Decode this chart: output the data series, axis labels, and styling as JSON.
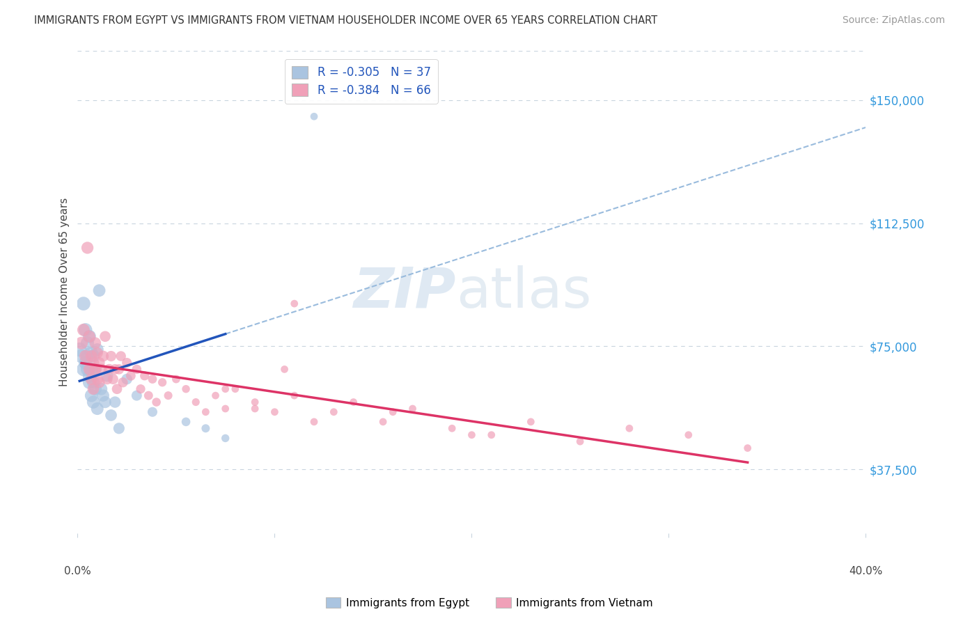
{
  "title": "IMMIGRANTS FROM EGYPT VS IMMIGRANTS FROM VIETNAM HOUSEHOLDER INCOME OVER 65 YEARS CORRELATION CHART",
  "source": "Source: ZipAtlas.com",
  "ylabel": "Householder Income Over 65 years",
  "yticks": [
    37500,
    75000,
    112500,
    150000
  ],
  "ytick_labels": [
    "$37,500",
    "$75,000",
    "$112,500",
    "$150,000"
  ],
  "xlim": [
    0.0,
    0.4
  ],
  "ylim": [
    18000,
    165000
  ],
  "egypt_R": -0.305,
  "egypt_N": 37,
  "vietnam_R": -0.384,
  "vietnam_N": 66,
  "egypt_color": "#aac4e0",
  "vietnam_color": "#f0a0b8",
  "egypt_line_color": "#2255bb",
  "vietnam_line_color": "#dd3366",
  "dashed_line_color": "#99bbdd",
  "background_color": "#ffffff",
  "grid_color": "#c8d4de",
  "egypt_x": [
    0.001,
    0.002,
    0.003,
    0.003,
    0.004,
    0.004,
    0.005,
    0.005,
    0.005,
    0.006,
    0.006,
    0.006,
    0.007,
    0.007,
    0.007,
    0.008,
    0.008,
    0.008,
    0.009,
    0.009,
    0.01,
    0.01,
    0.011,
    0.012,
    0.013,
    0.014,
    0.015,
    0.017,
    0.019,
    0.021,
    0.025,
    0.03,
    0.038,
    0.055,
    0.065,
    0.075,
    0.12
  ],
  "egypt_y": [
    74000,
    72000,
    88000,
    68000,
    80000,
    70000,
    76000,
    68000,
    72000,
    66000,
    78000,
    64000,
    73000,
    68000,
    60000,
    72000,
    58000,
    64000,
    68000,
    62000,
    74000,
    56000,
    92000,
    62000,
    60000,
    58000,
    66000,
    54000,
    58000,
    50000,
    65000,
    60000,
    55000,
    52000,
    50000,
    47000,
    145000
  ],
  "vietnam_x": [
    0.002,
    0.003,
    0.004,
    0.005,
    0.006,
    0.006,
    0.007,
    0.007,
    0.008,
    0.008,
    0.009,
    0.009,
    0.01,
    0.01,
    0.011,
    0.011,
    0.012,
    0.013,
    0.014,
    0.015,
    0.016,
    0.017,
    0.018,
    0.019,
    0.02,
    0.021,
    0.022,
    0.023,
    0.025,
    0.027,
    0.03,
    0.032,
    0.034,
    0.036,
    0.038,
    0.04,
    0.043,
    0.046,
    0.05,
    0.055,
    0.06,
    0.065,
    0.07,
    0.075,
    0.08,
    0.09,
    0.1,
    0.11,
    0.12,
    0.13,
    0.14,
    0.155,
    0.17,
    0.19,
    0.21,
    0.23,
    0.255,
    0.28,
    0.31,
    0.34,
    0.11,
    0.105,
    0.075,
    0.09,
    0.2,
    0.16
  ],
  "vietnam_y": [
    76000,
    80000,
    72000,
    105000,
    68000,
    78000,
    72000,
    65000,
    70000,
    62000,
    76000,
    68000,
    73000,
    65000,
    70000,
    64000,
    68000,
    72000,
    78000,
    65000,
    68000,
    72000,
    65000,
    68000,
    62000,
    68000,
    72000,
    64000,
    70000,
    66000,
    68000,
    62000,
    66000,
    60000,
    65000,
    58000,
    64000,
    60000,
    65000,
    62000,
    58000,
    55000,
    60000,
    56000,
    62000,
    58000,
    55000,
    60000,
    52000,
    55000,
    58000,
    52000,
    56000,
    50000,
    48000,
    52000,
    46000,
    50000,
    48000,
    44000,
    88000,
    68000,
    62000,
    56000,
    48000,
    55000
  ]
}
